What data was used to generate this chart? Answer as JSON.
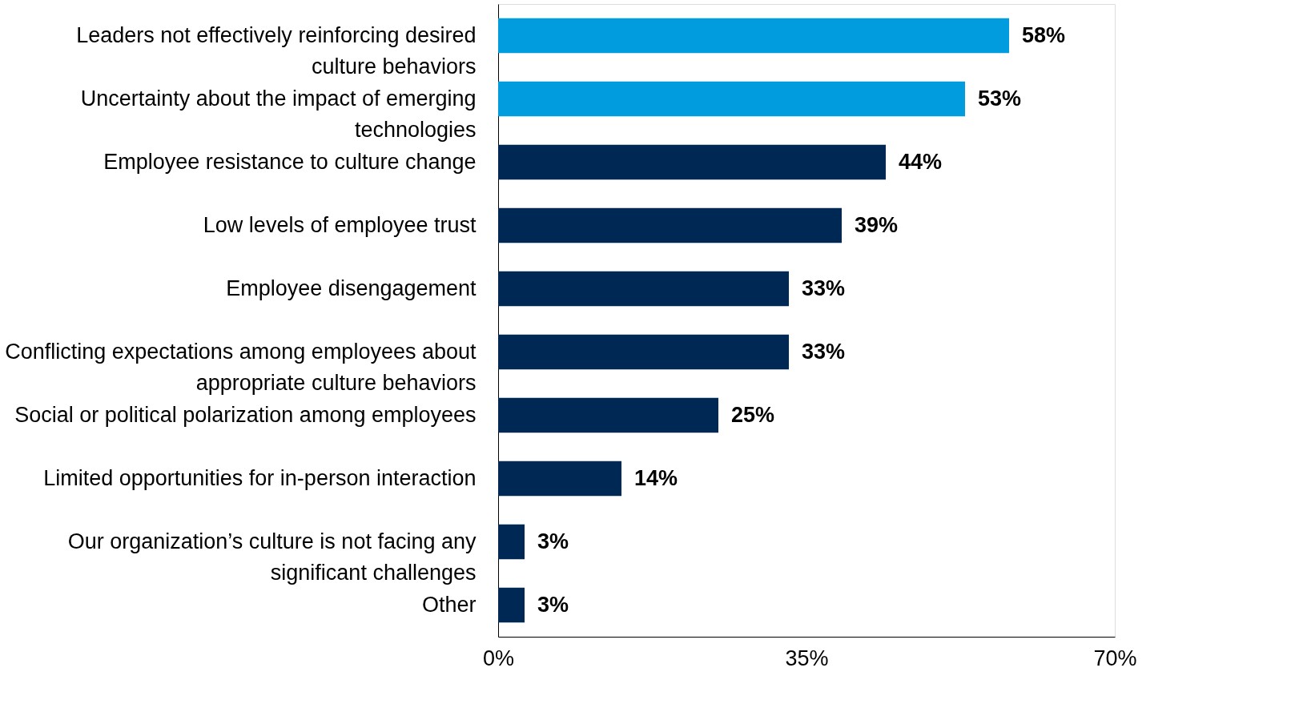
{
  "chart_data": {
    "type": "bar",
    "orientation": "horizontal",
    "categories": [
      "Leaders not effectively reinforcing desired culture behaviors",
      "Uncertainty about the impact of emerging technologies",
      "Employee resistance to culture change",
      "Low levels of employee trust",
      "Employee disengagement",
      "Conflicting expectations among employees about appropriate culture behaviors",
      "Social or political polarization among employees",
      "Limited opportunities for in-person interaction",
      "Our organization’s culture is not facing any significant challenges",
      "Other"
    ],
    "values": [
      58,
      53,
      44,
      39,
      33,
      33,
      25,
      14,
      3,
      3
    ],
    "value_labels": [
      "58%",
      "53%",
      "44%",
      "39%",
      "33%",
      "33%",
      "25%",
      "14%",
      "3%",
      "3%"
    ],
    "colors": [
      "#009cde",
      "#009cde",
      "#002855",
      "#002855",
      "#002855",
      "#002855",
      "#002855",
      "#002855",
      "#002855",
      "#002855"
    ],
    "xlim": [
      0,
      70
    ],
    "xticks": [
      {
        "value": 0,
        "label": "0%"
      },
      {
        "value": 35,
        "label": "35%"
      },
      {
        "value": 70,
        "label": "70%"
      }
    ],
    "grid": false,
    "legend": false
  }
}
